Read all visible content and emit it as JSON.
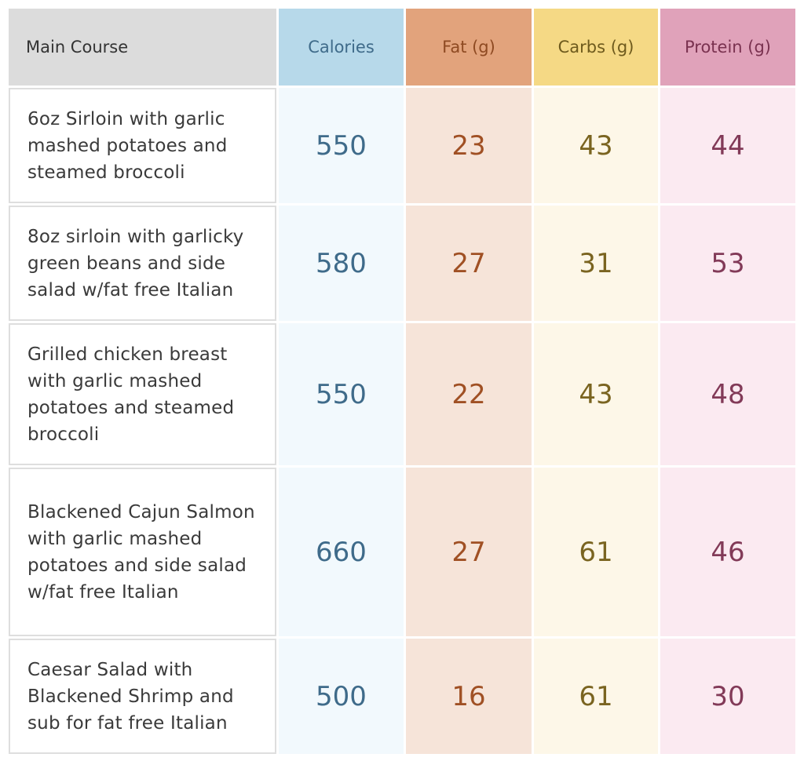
{
  "headers": {
    "course": "Main Course",
    "calories": "Calories",
    "fat": "Fat (g)",
    "carbs": "Carbs (g)",
    "protein": "Protein (g)"
  },
  "rows": [
    {
      "course": "6oz Sirloin with garlic mashed potatoes and steamed broccoli",
      "calories": "550",
      "fat": "23",
      "carbs": "43",
      "protein": "44"
    },
    {
      "course": "8oz sirloin with garlicky green beans and side salad w/fat free Italian",
      "calories": "580",
      "fat": "27",
      "carbs": "31",
      "protein": "53"
    },
    {
      "course": "Grilled chicken breast with garlic mashed potatoes and steamed broccoli",
      "calories": "550",
      "fat": "22",
      "carbs": "43",
      "protein": "48"
    },
    {
      "course": "Blackened Cajun Salmon with garlic mashed potatoes and side salad w/fat free Italian",
      "calories": "660",
      "fat": "27",
      "carbs": "61",
      "protein": "46"
    },
    {
      "course": "Caesar Salad with Blackened Shrimp and sub for fat free Italian",
      "calories": "500",
      "fat": "16",
      "carbs": "61",
      "protein": "30"
    }
  ],
  "colors": {
    "calories_header": "#b7d9ea",
    "fat_header": "#e2a37c",
    "carbs_header": "#f5d985",
    "protein_header": "#e0a2ba"
  }
}
